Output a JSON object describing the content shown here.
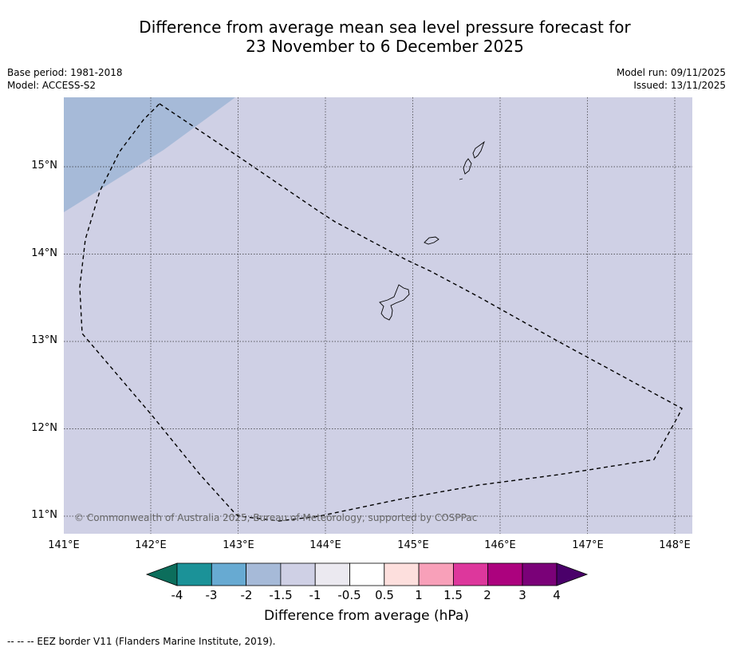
{
  "title": {
    "line1": "Difference from average mean sea level pressure forecast for",
    "line2": "23 November to 6 December 2025"
  },
  "meta": {
    "base_period": "Base period: 1981-2018",
    "model": "Model: ACCESS-S2",
    "model_run": "Model run: 09/11/2025",
    "issued": "Issued: 13/11/2025"
  },
  "map": {
    "lat_labels": [
      "15°N",
      "14°N",
      "13°N",
      "12°N",
      "11°N"
    ],
    "lon_labels": [
      "141°E",
      "142°E",
      "143°E",
      "144°E",
      "145°E",
      "146°E",
      "147°E",
      "148°E"
    ],
    "copyright": "© Commonwealth of Australia 2025, Bureau of Meteorology, supported by COSPPac",
    "colors": {
      "background_anomaly": "#cfd0e5",
      "northwest_anomaly": "#a6bad8",
      "eez_line": "#000000",
      "land_outline": "#000000"
    }
  },
  "colorbar": {
    "labels": [
      "-4",
      "-3",
      "-2",
      "-1.5",
      "-1",
      "-0.5",
      "0.5",
      "1",
      "1.5",
      "2",
      "3",
      "4"
    ],
    "colors": [
      "#0c6e5c",
      "#1b9298",
      "#67aad2",
      "#a6bad8",
      "#cfd0e5",
      "#ebe9f0",
      "#ffffff",
      "#fddfdd",
      "#f8a0b9",
      "#dd379c",
      "#ac027e",
      "#7a0178",
      "#4a006a"
    ],
    "title": "Difference from average (hPa)"
  },
  "footer": {
    "legend": "--  --  -- EEZ border V11 (Flanders Marine Institute, 2019)."
  }
}
